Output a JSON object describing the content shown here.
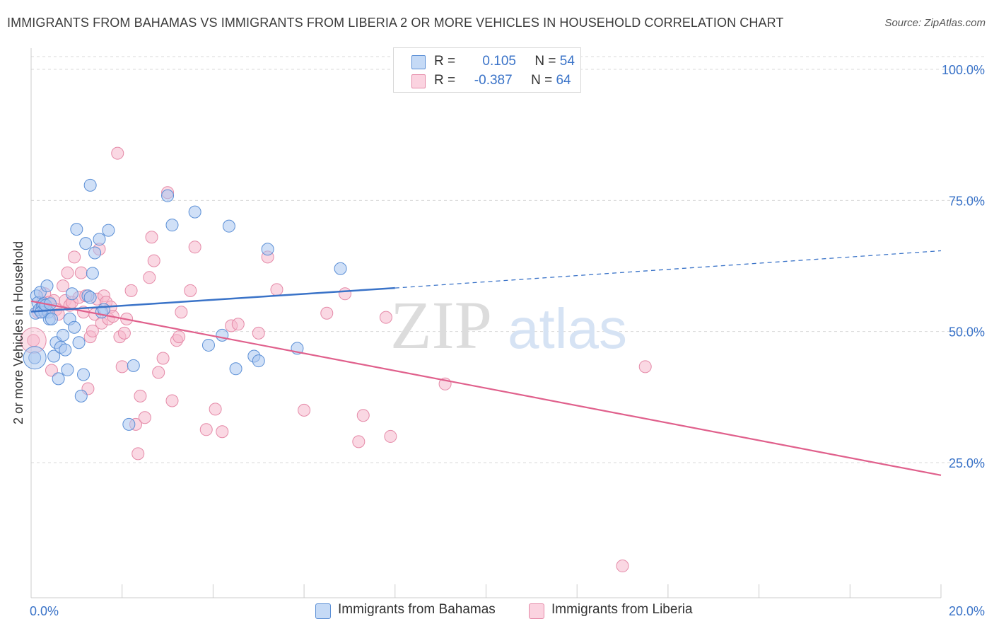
{
  "title": "IMMIGRANTS FROM BAHAMAS VS IMMIGRANTS FROM LIBERIA 2 OR MORE VEHICLES IN HOUSEHOLD CORRELATION CHART",
  "source": "Source: ZipAtlas.com",
  "watermark": {
    "zip": "ZIP",
    "atlas": "atlas"
  },
  "legend": {
    "rows": [
      {
        "r_label": "R =",
        "r_value": "0.105",
        "n_label": "N =",
        "n_value": "54",
        "color": "#a9c7f0"
      },
      {
        "r_label": "R =",
        "r_value": "-0.387",
        "n_label": "N =",
        "n_value": "64",
        "color": "#f6b8cc"
      }
    ]
  },
  "bottom_legend": [
    "Immigrants from Bahamas",
    "Immigrants from Liberia"
  ],
  "colors": {
    "bahamas_fill": "#a9c7f0",
    "bahamas_stroke": "#5b8fd6",
    "bahamas_line": "#3a73c8",
    "liberia_fill": "#f6b8cc",
    "liberia_stroke": "#e58aa8",
    "liberia_line": "#e0608c",
    "tick_label": "#3a73c8",
    "grid": "#d8d8d8"
  },
  "chart_data": {
    "type": "scatter",
    "xlabel": "",
    "ylabel": "2 or more Vehicles in Household",
    "xlim": [
      0,
      20
    ],
    "ylim": [
      0,
      105
    ],
    "x_tick_labels": [
      "0.0%",
      "20.0%"
    ],
    "y_ticks": [
      25,
      50,
      75,
      100
    ],
    "y_tick_labels": [
      "25.0%",
      "50.0%",
      "75.0%",
      "100.0%"
    ],
    "grid": true,
    "legend_position": "top-center",
    "series": [
      {
        "name": "Immigrants from Bahamas",
        "r": 0.105,
        "n": 54,
        "points": [
          [
            0.08,
            45.0
          ],
          [
            0.1,
            53.5
          ],
          [
            0.12,
            56.8
          ],
          [
            0.15,
            55.5
          ],
          [
            0.18,
            54.2
          ],
          [
            0.2,
            57.5
          ],
          [
            0.25,
            55.0
          ],
          [
            0.3,
            53.7
          ],
          [
            0.35,
            58.7
          ],
          [
            0.38,
            53.7
          ],
          [
            0.4,
            52.4
          ],
          [
            0.45,
            52.4
          ],
          [
            0.5,
            45.3
          ],
          [
            0.55,
            47.9
          ],
          [
            0.6,
            41.0
          ],
          [
            0.65,
            47.0
          ],
          [
            0.7,
            49.3
          ],
          [
            0.75,
            46.5
          ],
          [
            0.8,
            42.7
          ],
          [
            0.85,
            52.4
          ],
          [
            0.9,
            57.2
          ],
          [
            0.95,
            50.8
          ],
          [
            1.0,
            69.5
          ],
          [
            1.05,
            47.9
          ],
          [
            1.1,
            37.7
          ],
          [
            1.15,
            41.8
          ],
          [
            1.2,
            66.8
          ],
          [
            1.25,
            56.8
          ],
          [
            1.3,
            56.5
          ],
          [
            1.3,
            77.9
          ],
          [
            1.35,
            61.1
          ],
          [
            1.4,
            65.0
          ],
          [
            1.5,
            67.6
          ],
          [
            1.55,
            53.7
          ],
          [
            1.6,
            54.2
          ],
          [
            1.7,
            69.3
          ],
          [
            2.15,
            32.3
          ],
          [
            2.25,
            43.5
          ],
          [
            3.0,
            75.9
          ],
          [
            3.1,
            70.3
          ],
          [
            3.6,
            72.8
          ],
          [
            3.9,
            47.4
          ],
          [
            4.2,
            49.3
          ],
          [
            4.35,
            70.1
          ],
          [
            4.5,
            42.9
          ],
          [
            4.9,
            45.3
          ],
          [
            5.0,
            44.4
          ],
          [
            5.2,
            65.7
          ],
          [
            5.85,
            46.8
          ],
          [
            6.8,
            62.0
          ],
          [
            0.22,
            53.7
          ],
          [
            0.28,
            55.3
          ],
          [
            0.32,
            55.0
          ],
          [
            0.42,
            55.3
          ]
        ],
        "trend": {
          "x": [
            0,
            8
          ],
          "y": [
            53.8,
            58.3
          ]
        },
        "trend_dashed": {
          "x": [
            8,
            20
          ],
          "y": [
            58.3,
            65.4
          ]
        }
      },
      {
        "name": "Immigrants from Liberia",
        "r": -0.387,
        "n": 64,
        "points": [
          [
            0.05,
            48.3
          ],
          [
            0.15,
            53.7
          ],
          [
            0.25,
            55.6
          ],
          [
            0.3,
            57.2
          ],
          [
            0.35,
            54.2
          ],
          [
            0.4,
            55.6
          ],
          [
            0.45,
            42.6
          ],
          [
            0.5,
            55.9
          ],
          [
            0.55,
            54.2
          ],
          [
            0.6,
            53.3
          ],
          [
            0.7,
            58.7
          ],
          [
            0.75,
            55.9
          ],
          [
            0.8,
            61.2
          ],
          [
            0.85,
            55.0
          ],
          [
            0.9,
            55.6
          ],
          [
            0.95,
            64.2
          ],
          [
            1.05,
            56.5
          ],
          [
            1.1,
            61.2
          ],
          [
            1.15,
            53.7
          ],
          [
            1.2,
            56.8
          ],
          [
            1.25,
            39.1
          ],
          [
            1.3,
            49.0
          ],
          [
            1.35,
            50.1
          ],
          [
            1.4,
            53.3
          ],
          [
            1.45,
            56.2
          ],
          [
            1.5,
            65.7
          ],
          [
            1.55,
            51.6
          ],
          [
            1.6,
            56.8
          ],
          [
            1.65,
            55.6
          ],
          [
            1.7,
            52.4
          ],
          [
            1.75,
            54.7
          ],
          [
            1.8,
            52.9
          ],
          [
            1.9,
            84.0
          ],
          [
            1.95,
            49.0
          ],
          [
            2.0,
            43.3
          ],
          [
            2.05,
            49.7
          ],
          [
            2.1,
            52.4
          ],
          [
            2.2,
            57.8
          ],
          [
            2.3,
            32.3
          ],
          [
            2.35,
            26.7
          ],
          [
            2.4,
            37.7
          ],
          [
            2.5,
            33.6
          ],
          [
            2.6,
            60.3
          ],
          [
            2.65,
            68.0
          ],
          [
            2.7,
            63.5
          ],
          [
            2.8,
            42.2
          ],
          [
            2.9,
            44.9
          ],
          [
            3.0,
            76.5
          ],
          [
            3.1,
            36.8
          ],
          [
            3.2,
            48.3
          ],
          [
            3.25,
            49.0
          ],
          [
            3.3,
            53.7
          ],
          [
            3.5,
            57.8
          ],
          [
            3.6,
            66.1
          ],
          [
            3.85,
            31.3
          ],
          [
            4.05,
            35.2
          ],
          [
            4.2,
            30.9
          ],
          [
            4.4,
            51.1
          ],
          [
            4.55,
            51.4
          ],
          [
            5.0,
            49.7
          ],
          [
            5.2,
            64.2
          ],
          [
            5.4,
            58.0
          ],
          [
            6.5,
            53.5
          ],
          [
            7.3,
            34.0
          ]
        ],
        "extra_points": [
          [
            6.0,
            35.0
          ],
          [
            6.9,
            57.2
          ],
          [
            7.2,
            29.0
          ],
          [
            7.9,
            30.0
          ],
          [
            7.8,
            52.7
          ],
          [
            9.1,
            40.0
          ],
          [
            13.5,
            43.3
          ],
          [
            13.0,
            5.3
          ]
        ],
        "trend": {
          "x": [
            0,
            20
          ],
          "y": [
            55.8,
            22.6
          ]
        }
      }
    ]
  }
}
